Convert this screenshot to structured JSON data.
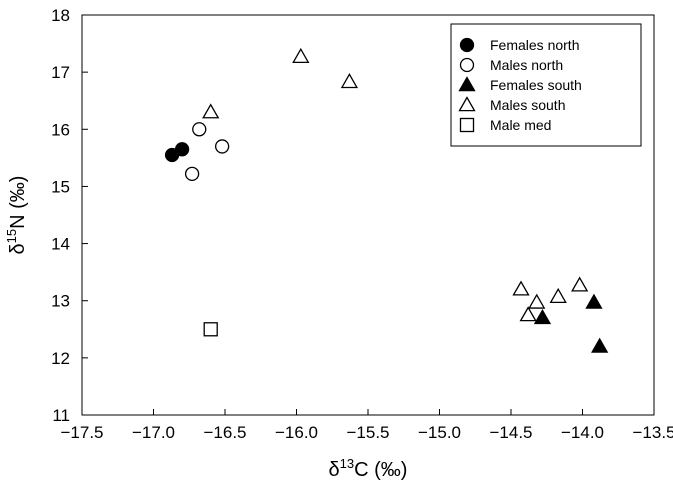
{
  "chart_data": {
    "type": "scatter",
    "x_axis": {
      "label_prefix": "δ",
      "label_superscript": "13",
      "label_main": "C (‰)",
      "range": [
        -17.5,
        -13.5
      ],
      "ticks": [
        "-17.5",
        "-17.0",
        "-16.5",
        "-16.0",
        "-15.5",
        "-15.0",
        "-14.5",
        "-14.0",
        "-13.5"
      ]
    },
    "y_axis": {
      "label_prefix": "δ",
      "label_superscript": "15",
      "label_main": "N (‰)",
      "range": [
        11,
        18
      ],
      "ticks": [
        "11",
        "12",
        "13",
        "14",
        "15",
        "16",
        "17",
        "18"
      ]
    },
    "grid": false,
    "legend_position": "top-right",
    "series": [
      {
        "name": "Females north",
        "marker": "circle",
        "filled": true,
        "points": [
          [
            -16.87,
            15.55
          ],
          [
            -16.8,
            15.65
          ]
        ]
      },
      {
        "name": "Males north",
        "marker": "circle",
        "filled": false,
        "points": [
          [
            -16.68,
            16.0
          ],
          [
            -16.73,
            15.22
          ],
          [
            -16.52,
            15.7
          ]
        ]
      },
      {
        "name": "Females south",
        "marker": "triangle",
        "filled": true,
        "points": [
          [
            -14.28,
            12.7
          ],
          [
            -13.92,
            12.97
          ],
          [
            -13.88,
            12.2
          ]
        ]
      },
      {
        "name": "Males south",
        "marker": "triangle",
        "filled": false,
        "points": [
          [
            -16.6,
            16.3
          ],
          [
            -15.97,
            17.27
          ],
          [
            -15.63,
            16.83
          ],
          [
            -14.43,
            13.2
          ],
          [
            -14.38,
            12.75
          ],
          [
            -14.32,
            12.97
          ],
          [
            -14.17,
            13.07
          ],
          [
            -14.02,
            13.27
          ]
        ]
      },
      {
        "name": "Male med",
        "marker": "square",
        "filled": false,
        "points": [
          [
            -16.6,
            12.5
          ]
        ]
      }
    ]
  }
}
